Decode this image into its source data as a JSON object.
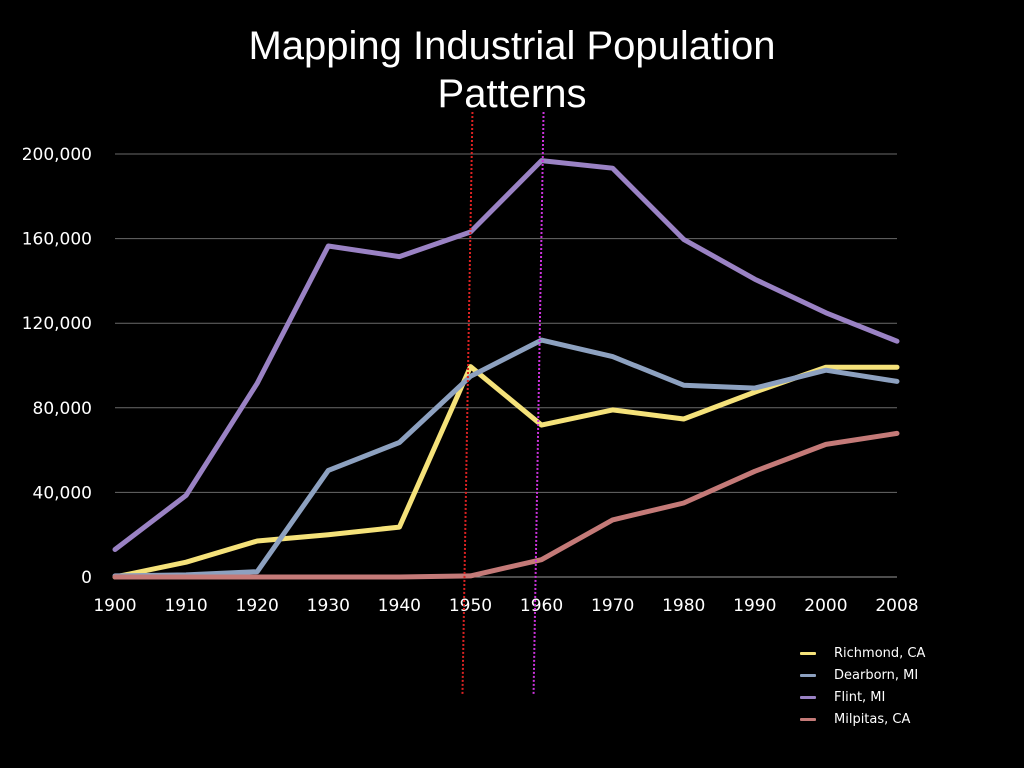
{
  "slide": {
    "title_line1": "Mapping Industrial Population",
    "title_line2": "Patterns"
  },
  "chart_data": {
    "type": "line",
    "title": "",
    "xlabel": "",
    "ylabel": "",
    "grid": true,
    "legend_position": "bottom-right",
    "ylim": [
      0,
      200000
    ],
    "yticks": [
      "0",
      "40,000",
      "80,000",
      "120,000",
      "160,000",
      "200,000"
    ],
    "x": [
      "1900",
      "1910",
      "1920",
      "1930",
      "1940",
      "1950",
      "1960",
      "1970",
      "1980",
      "1990",
      "2000",
      "2008"
    ],
    "series": [
      {
        "name": "Richmond, CA",
        "color": "#f5e27a",
        "values": [
          0,
          7000,
          17000,
          20000,
          23600,
          99500,
          71800,
          79000,
          74700,
          87400,
          99200,
          99200
        ]
      },
      {
        "name": "Dearborn, MI",
        "color": "#8da1c0",
        "values": [
          500,
          1000,
          2500,
          50400,
          63600,
          94900,
          112000,
          104200,
          90700,
          89300,
          97800,
          92500
        ]
      },
      {
        "name": "Flint, MI",
        "color": "#9a82c4",
        "values": [
          13000,
          38600,
          91600,
          156500,
          151500,
          163100,
          196900,
          193300,
          159600,
          140800,
          124900,
          111500
        ]
      },
      {
        "name": "Milpitas, CA",
        "color": "#c47a78",
        "values": [
          0,
          0,
          0,
          0,
          0,
          500,
          8200,
          27000,
          35000,
          50000,
          62700,
          67900
        ]
      }
    ],
    "reference_lines": [
      {
        "at": "1950",
        "color": "#dd2222"
      },
      {
        "at": "1960",
        "color": "#cc33dd"
      }
    ]
  }
}
